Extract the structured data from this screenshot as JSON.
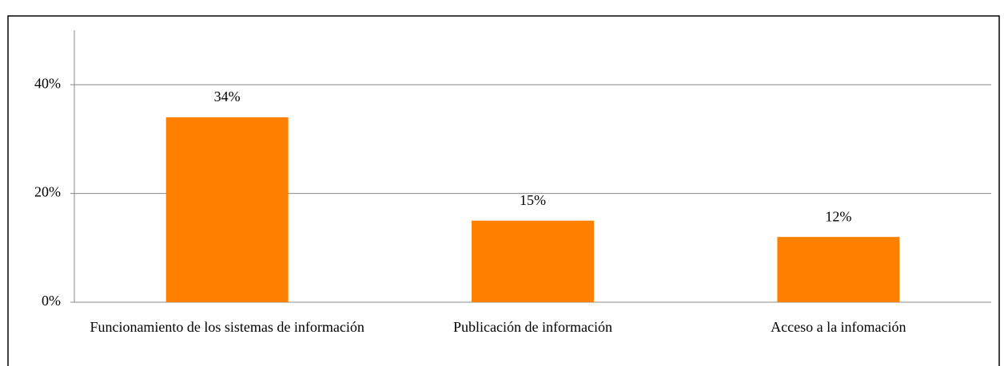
{
  "chart_data": {
    "type": "bar",
    "categories": [
      "Funcionamiento de los sistemas de información",
      "Publicación de información",
      "Acceso a la infomación"
    ],
    "values": [
      34,
      15,
      12
    ],
    "value_labels": [
      "34%",
      "15%",
      "12%"
    ],
    "color": "#ff8000",
    "ylim": [
      0,
      50
    ],
    "yticks": [
      {
        "value": 0,
        "label": "0%"
      },
      {
        "value": 20,
        "label": "20%"
      },
      {
        "value": 40,
        "label": "40%"
      }
    ],
    "grid": true
  }
}
